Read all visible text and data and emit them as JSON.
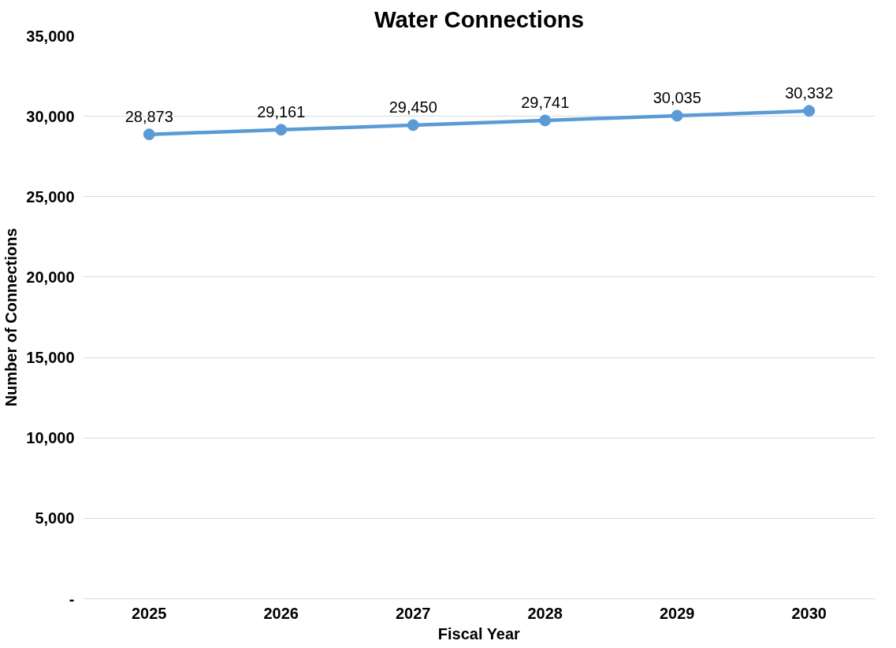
{
  "chart_data": {
    "type": "line",
    "title": "Water Connections",
    "xlabel": "Fiscal Year",
    "ylabel": "Number of Connections",
    "categories": [
      "2025",
      "2026",
      "2027",
      "2028",
      "2029",
      "2030"
    ],
    "series": [
      {
        "color": "#5b9bd5",
        "values": [
          28873,
          29161,
          29450,
          29741,
          30035,
          30332
        ],
        "value_labels": [
          "28,873",
          "29,161",
          "29,450",
          "29,741",
          "30,035",
          "30,332"
        ]
      }
    ],
    "ylim": [
      0,
      35000
    ],
    "yticks": [
      {
        "value": 0,
        "label": "-"
      },
      {
        "value": 5000,
        "label": "5,000"
      },
      {
        "value": 10000,
        "label": "10,000"
      },
      {
        "value": 15000,
        "label": "15,000"
      },
      {
        "value": 20000,
        "label": "20,000"
      },
      {
        "value": 25000,
        "label": "25,000"
      },
      {
        "value": 30000,
        "label": "30,000"
      },
      {
        "value": 35000,
        "label": "35,000"
      }
    ],
    "grid": "y",
    "marker": "circle",
    "line_style": "solid"
  }
}
